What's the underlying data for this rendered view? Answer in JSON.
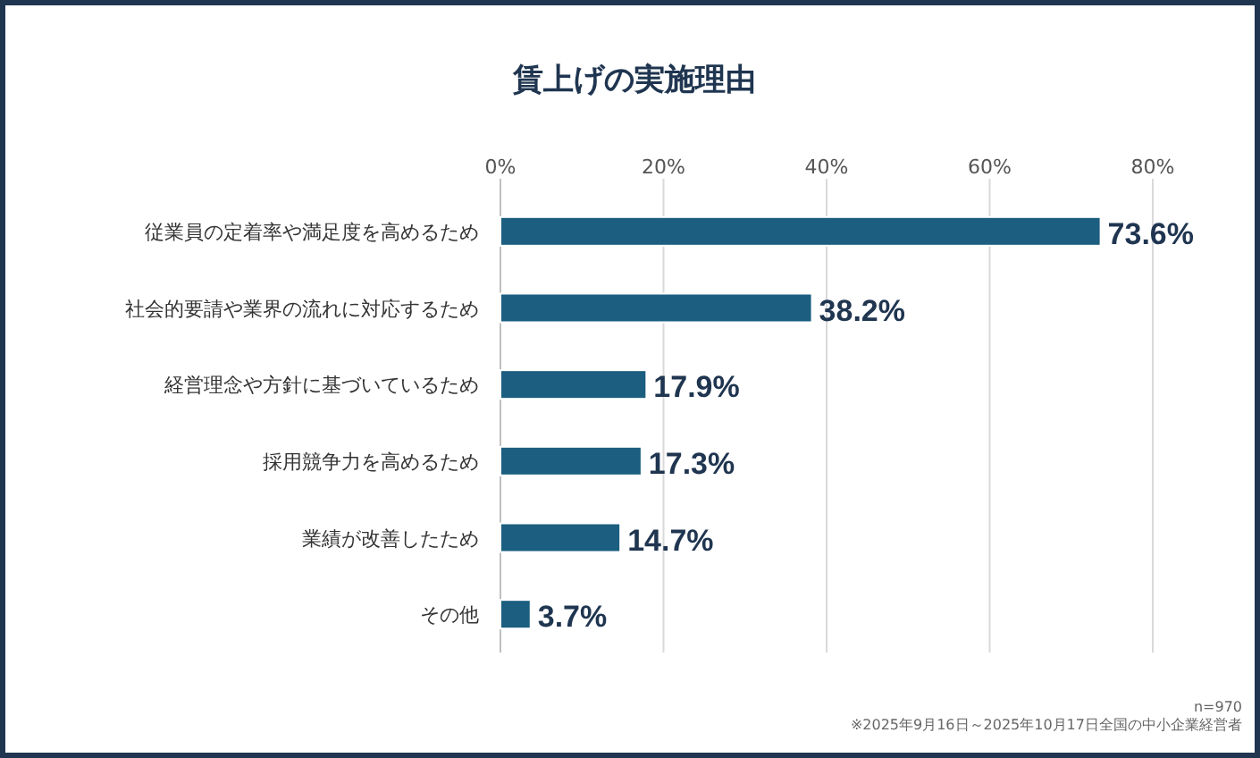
{
  "chart_data": {
    "type": "bar",
    "orientation": "horizontal",
    "title": "賃上げの実施理由",
    "categories": [
      "従業員の定着率や満足度を高めるため",
      "社会的要請や業界の流れに対応するため",
      "経営理念や方針に基づいているため",
      "採用競争力を高めるため",
      "業績が改善したため",
      "その他"
    ],
    "values": [
      73.6,
      38.2,
      17.9,
      17.3,
      14.7,
      3.7
    ],
    "value_labels": [
      "73.6%",
      "38.2%",
      "17.9%",
      "17.3%",
      "14.7%",
      "3.7%"
    ],
    "color": "#1b5e80",
    "xlim": [
      0,
      80
    ],
    "xticks": [
      {
        "value": 0,
        "label": "0%"
      },
      {
        "value": 20,
        "label": "20%"
      },
      {
        "value": 40,
        "label": "40%"
      },
      {
        "value": 60,
        "label": "60%"
      },
      {
        "value": 80,
        "label": "80%"
      }
    ],
    "grid": "x",
    "annotations": [
      "n=970",
      "※2025年9月16日～2025年10月17日全国の中小企業経営者"
    ]
  }
}
